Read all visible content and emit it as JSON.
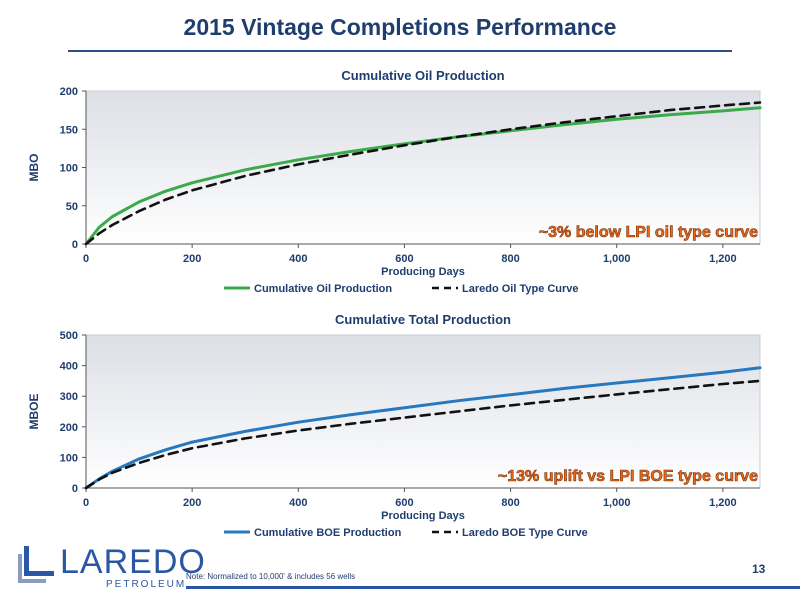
{
  "page": {
    "title": "2015 Vintage Completions Performance",
    "footnote": "Note: Normalized to 10,000' & includes 56 wells",
    "page_number": "13"
  },
  "logo": {
    "word": "LAREDO",
    "sub": "PETROLEUM"
  },
  "chart_data": [
    {
      "type": "line",
      "title": "Cumulative Oil Production",
      "xlabel": "Producing Days",
      "ylabel": "MBO",
      "xlim": [
        0,
        1270
      ],
      "ylim": [
        0,
        200
      ],
      "xticks": [
        0,
        200,
        400,
        600,
        800,
        1000,
        1200
      ],
      "xtick_labels": [
        "0",
        "200",
        "400",
        "600",
        "800",
        "1,000",
        "1,200"
      ],
      "yticks": [
        0,
        50,
        100,
        150,
        200
      ],
      "ytick_labels": [
        "0",
        "50",
        "100",
        "150",
        "200"
      ],
      "annotation": "~3% below LPI oil type curve",
      "legend_position": "bottom-center",
      "series": [
        {
          "name": "Cumulative Oil Production",
          "color": "#3aaa4a",
          "style": "solid",
          "x": [
            0,
            25,
            50,
            100,
            150,
            200,
            300,
            400,
            500,
            600,
            700,
            800,
            900,
            1000,
            1100,
            1200,
            1270
          ],
          "y": [
            0,
            22,
            36,
            55,
            69,
            80,
            97,
            110,
            121,
            131,
            140,
            148,
            156,
            163,
            169,
            174,
            178
          ]
        },
        {
          "name": "Laredo Oil Type Curve",
          "color": "#111111",
          "style": "dashed",
          "x": [
            0,
            25,
            50,
            100,
            150,
            200,
            300,
            400,
            500,
            600,
            700,
            800,
            900,
            1000,
            1100,
            1200,
            1270
          ],
          "y": [
            0,
            14,
            25,
            43,
            58,
            70,
            89,
            104,
            117,
            129,
            140,
            150,
            159,
            167,
            175,
            181,
            185
          ]
        }
      ]
    },
    {
      "type": "line",
      "title": "Cumulative Total Production",
      "xlabel": "Producing Days",
      "ylabel": "MBOE",
      "xlim": [
        0,
        1270
      ],
      "ylim": [
        0,
        500
      ],
      "xticks": [
        0,
        200,
        400,
        600,
        800,
        1000,
        1200
      ],
      "xtick_labels": [
        "0",
        "200",
        "400",
        "600",
        "800",
        "1,000",
        "1,200"
      ],
      "yticks": [
        0,
        100,
        200,
        300,
        400,
        500
      ],
      "ytick_labels": [
        "0",
        "100",
        "200",
        "300",
        "400",
        "500"
      ],
      "annotation": "~13% uplift vs LPI BOE type curve",
      "legend_position": "bottom-center",
      "series": [
        {
          "name": "Cumulative BOE Production",
          "color": "#2878c0",
          "style": "solid",
          "x": [
            0,
            25,
            50,
            100,
            150,
            200,
            300,
            400,
            500,
            600,
            700,
            800,
            900,
            1000,
            1100,
            1200,
            1270
          ],
          "y": [
            0,
            30,
            55,
            95,
            125,
            150,
            185,
            215,
            240,
            262,
            285,
            305,
            325,
            343,
            360,
            378,
            393
          ]
        },
        {
          "name": "Laredo BOE Type Curve",
          "color": "#111111",
          "style": "dashed",
          "x": [
            0,
            25,
            50,
            100,
            150,
            200,
            300,
            400,
            500,
            600,
            700,
            800,
            900,
            1000,
            1100,
            1200,
            1270
          ],
          "y": [
            0,
            28,
            50,
            82,
            108,
            130,
            162,
            188,
            210,
            230,
            250,
            270,
            288,
            306,
            323,
            340,
            350
          ]
        }
      ]
    }
  ]
}
